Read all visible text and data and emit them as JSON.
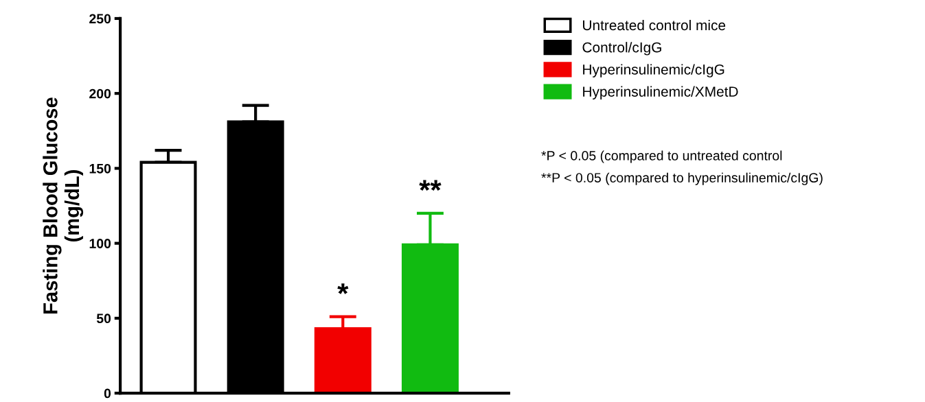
{
  "chart_data": {
    "type": "bar",
    "ylabel": "Fasting Blood Glucose\n(mg/dL)",
    "categories": [
      null,
      null,
      null,
      null
    ],
    "series": [
      {
        "name": "Untreated control mice",
        "color": "#ffffff",
        "values": [
          154,
          null,
          null,
          null
        ],
        "errors": [
          8,
          null,
          null,
          null
        ]
      },
      {
        "name": "Control/cIgG",
        "color": "#000000",
        "values": [
          null,
          181,
          null,
          null
        ],
        "errors": [
          null,
          11,
          null,
          null
        ]
      },
      {
        "name": "Hyperinsulinemic/cIgG",
        "color": "#f20000",
        "values": [
          null,
          null,
          43,
          null
        ],
        "errors": [
          null,
          null,
          8,
          null
        ],
        "value_labels": [
          null,
          null,
          "*",
          null
        ]
      },
      {
        "name": "Hyperinsulinemic/XMetD",
        "color": "#11bb11",
        "values": [
          null,
          null,
          null,
          99
        ],
        "errors": [
          null,
          null,
          null,
          21
        ],
        "value_labels": [
          null,
          null,
          null,
          "**"
        ]
      }
    ],
    "ylim": [
      0,
      250
    ],
    "yticks": [
      0,
      50,
      100,
      150,
      200,
      250
    ],
    "tick_labels": "y",
    "grid": false,
    "legend": "top right",
    "annotations": [
      "*P < 0.05 (compared to untreated control",
      "**P < 0.05 (compared to hyperinsulinemic/cIgG)"
    ]
  }
}
